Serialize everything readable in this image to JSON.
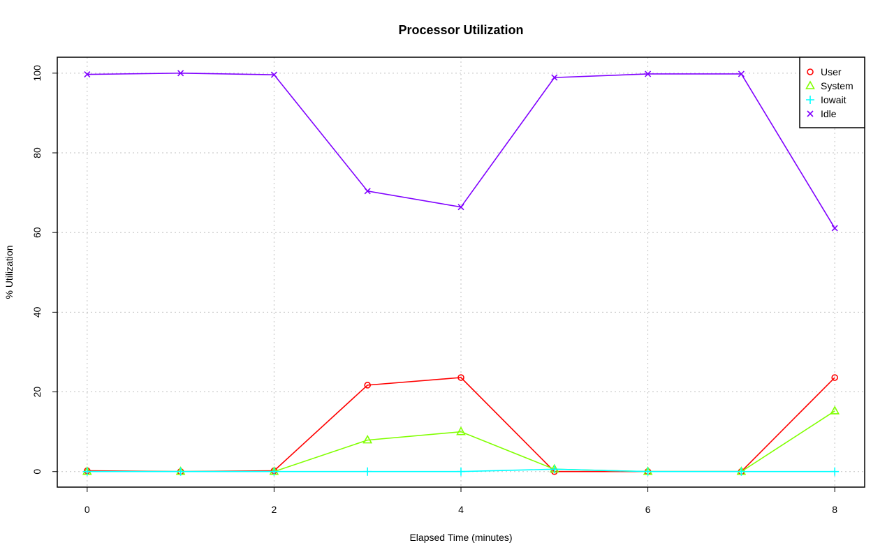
{
  "chart_data": {
    "type": "line",
    "title": "Processor Utilization",
    "xlabel": "Elapsed Time (minutes)",
    "ylabel": "% Utilization",
    "x": [
      0,
      1,
      2,
      3,
      4,
      5,
      6,
      7,
      8
    ],
    "xticks": [
      0,
      2,
      4,
      6,
      8
    ],
    "yticks": [
      0,
      20,
      40,
      60,
      80,
      100
    ],
    "xlim": [
      -0.32,
      8.32
    ],
    "ylim": [
      -3.9,
      104
    ],
    "grid": true,
    "legend_position": "top-right",
    "series": [
      {
        "name": "User",
        "color": "#ff0000",
        "marker": "circle",
        "values": [
          0.2,
          0,
          0.2,
          21.7,
          23.6,
          0,
          0,
          0,
          23.6
        ]
      },
      {
        "name": "System",
        "color": "#80ff00",
        "marker": "triangle",
        "values": [
          0,
          0,
          0,
          7.9,
          10.0,
          0.6,
          0,
          0,
          15.2
        ]
      },
      {
        "name": "Iowait",
        "color": "#00ffff",
        "marker": "plus",
        "values": [
          0,
          0,
          0,
          0,
          0,
          0.6,
          0,
          0,
          0
        ]
      },
      {
        "name": "Idle",
        "color": "#8000ff",
        "marker": "cross",
        "values": [
          99.7,
          100,
          99.6,
          70.4,
          66.4,
          98.9,
          99.8,
          99.8,
          61.1
        ]
      }
    ]
  }
}
